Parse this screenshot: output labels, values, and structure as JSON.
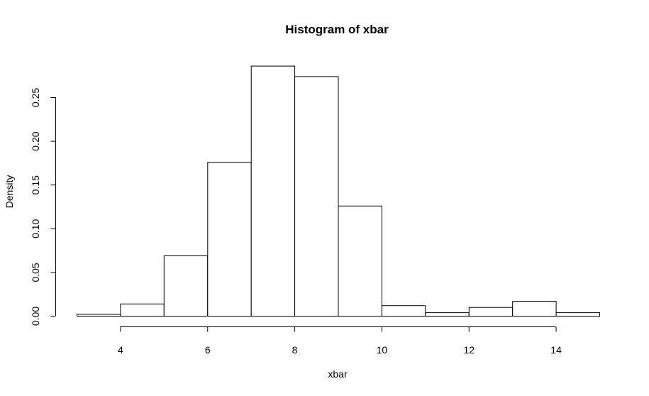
{
  "chart_data": {
    "type": "bar",
    "title": "Histogram of xbar",
    "xlabel": "xbar",
    "ylabel": "Density",
    "bins": [
      {
        "x0": 3,
        "x1": 4,
        "density": 0.002
      },
      {
        "x0": 4,
        "x1": 5,
        "density": 0.014
      },
      {
        "x0": 5,
        "x1": 6,
        "density": 0.069
      },
      {
        "x0": 6,
        "x1": 7,
        "density": 0.176
      },
      {
        "x0": 7,
        "x1": 8,
        "density": 0.286
      },
      {
        "x0": 8,
        "x1": 9,
        "density": 0.274
      },
      {
        "x0": 9,
        "x1": 10,
        "density": 0.126
      },
      {
        "x0": 10,
        "x1": 11,
        "density": 0.012
      },
      {
        "x0": 11,
        "x1": 12,
        "density": 0.004
      },
      {
        "x0": 12,
        "x1": 13,
        "density": 0.01
      },
      {
        "x0": 13,
        "x1": 14,
        "density": 0.017
      },
      {
        "x0": 14,
        "x1": 15,
        "density": 0.004
      }
    ],
    "xlim": [
      3,
      15
    ],
    "ylim": [
      0,
      0.29
    ],
    "x_ticks": [
      4,
      6,
      8,
      10,
      12,
      14
    ],
    "y_ticks": [
      0.0,
      0.05,
      0.1,
      0.15,
      0.2,
      0.25
    ],
    "x_tick_labels": [
      "4",
      "6",
      "8",
      "10",
      "12",
      "14"
    ],
    "y_tick_labels": [
      "0.00",
      "0.05",
      "0.10",
      "0.15",
      "0.20",
      "0.25"
    ],
    "grid": false,
    "bar_fill": "#ffffff",
    "bar_stroke": "#000000"
  }
}
